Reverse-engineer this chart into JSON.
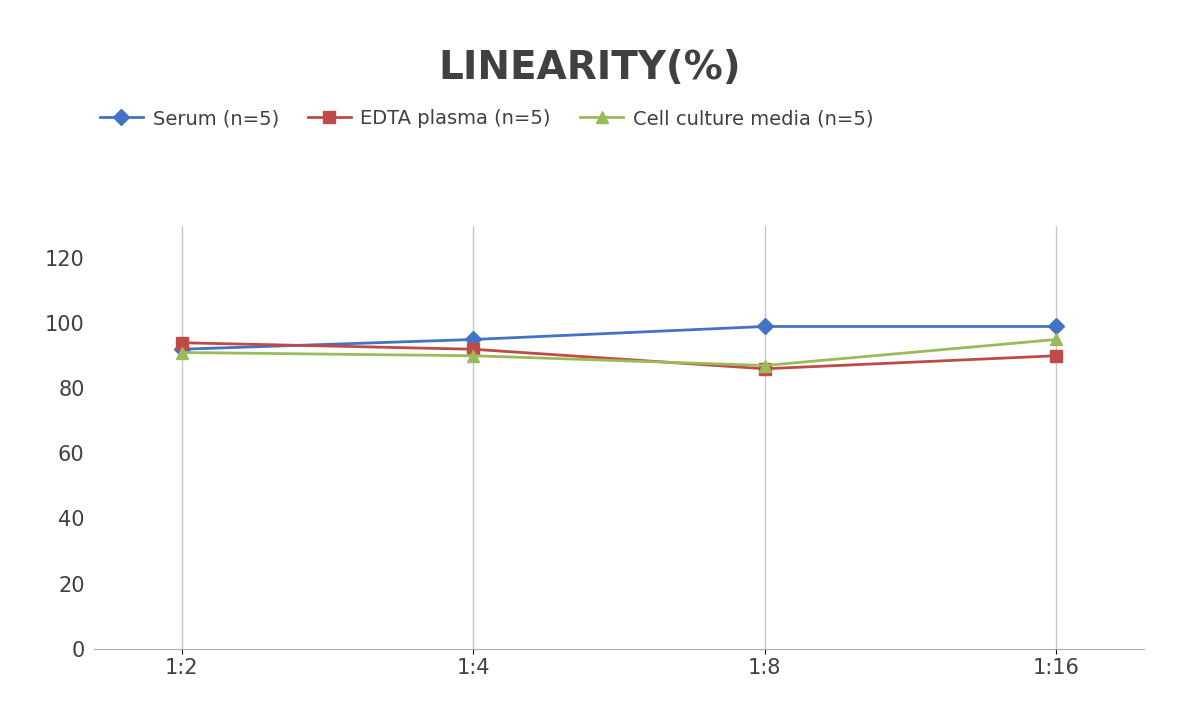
{
  "title": "LINEARITY(%)",
  "x_labels": [
    "1:2",
    "1:4",
    "1:8",
    "1:16"
  ],
  "series": [
    {
      "name": "Serum (n=5)",
      "values": [
        92,
        95,
        99,
        99
      ],
      "color": "#4472C4",
      "marker": "D",
      "marker_color": "#4472C4"
    },
    {
      "name": "EDTA plasma (n=5)",
      "values": [
        94,
        92,
        86,
        90
      ],
      "color": "#BE4B48",
      "marker": "s",
      "marker_color": "#BE4B48"
    },
    {
      "name": "Cell culture media (n=5)",
      "values": [
        91,
        90,
        87,
        95
      ],
      "color": "#9BBB59",
      "marker": "^",
      "marker_color": "#9BBB59"
    }
  ],
  "ylim": [
    0,
    130
  ],
  "yticks": [
    0,
    20,
    40,
    60,
    80,
    100,
    120
  ],
  "title_fontsize": 28,
  "legend_fontsize": 14,
  "tick_fontsize": 15,
  "background_color": "#ffffff",
  "grid_color": "#c8c8c8"
}
